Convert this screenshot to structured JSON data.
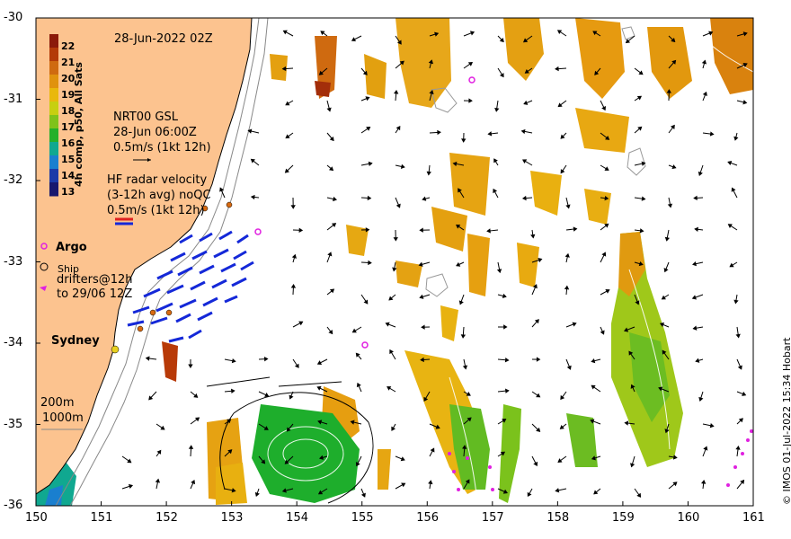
{
  "map": {
    "date": "28-Jun-2022 02Z",
    "gsl": {
      "title": "NRT00 GSL",
      "time": "28-Jun 06:00Z",
      "scale": "0.5m/s (1kt 12h)"
    },
    "radar": {
      "title": "HF radar velocity",
      "avg": "(3-12h avg) noQC",
      "scale": "0.5m/s (1kt 12h)"
    },
    "argo_label": "Argo",
    "ship_label": "Ship",
    "drifters_label1": "drifters@12h",
    "drifters_label2": "to 29/06 12Z",
    "city": "Sydney",
    "iso200": "200m",
    "iso1000": "1000m",
    "credit": "© IMOS 01-Jul-2022 15:34 Hobart"
  },
  "colorbar": {
    "title": "4h comp, p50, All Sats",
    "ticks": [
      "22",
      "21",
      "20",
      "19",
      "18",
      "17",
      "16",
      "15",
      "14",
      "13"
    ],
    "colors": [
      "#8b1a0a",
      "#b33a08",
      "#cf6a10",
      "#e0920e",
      "#e9b80c",
      "#c7cf10",
      "#7fc21a",
      "#24b02a",
      "#10a890",
      "#1a7fcf",
      "#1c3aa8",
      "#18186e"
    ]
  },
  "axes": {
    "x_ticks": [
      "150",
      "151",
      "152",
      "153",
      "154",
      "155",
      "156",
      "157",
      "158",
      "159",
      "160",
      "161"
    ],
    "y_ticks": [
      "-30",
      "-31",
      "-32",
      "-33",
      "-34",
      "-35",
      "-36"
    ]
  }
}
